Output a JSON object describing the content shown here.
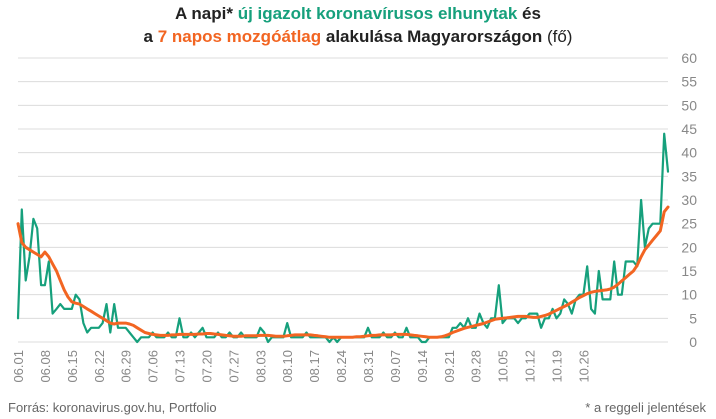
{
  "title": {
    "line1_prefix": "A napi* ",
    "line1_highlight": "új igazolt koronavírusos elhunytak",
    "line1_suffix": " és",
    "line2_prefix": "a ",
    "line2_highlight": "7 napos mozgóátlag",
    "line2_middle": " alakulása Magyarországon",
    "line2_unit": " (fő)"
  },
  "source": "Forrás: koronavirus.gov.hu, Portfolio",
  "footnote": "* a reggeli jelentések",
  "colors": {
    "daily": "#16a07c",
    "average": "#f26522",
    "grid": "#dcdcdc",
    "axis_text": "#888888"
  },
  "chart_data": {
    "type": "line",
    "ylim": [
      0,
      60
    ],
    "y_ticks": [
      "0",
      "5",
      "10",
      "15",
      "20",
      "25",
      "30",
      "35",
      "40",
      "45",
      "50",
      "55",
      "60"
    ],
    "x_tick_labels": [
      "06.01",
      "06.08",
      "06.15",
      "06.22",
      "06.29",
      "07.06",
      "07.13",
      "07.20",
      "07.27",
      "08.03",
      "08.10",
      "08.17",
      "08.24",
      "08.31",
      "09.07",
      "09.14",
      "09.21",
      "09.28",
      "10.05",
      "10.12",
      "10.19",
      "10.26"
    ],
    "grid": true,
    "series": [
      {
        "key": "daily",
        "values": [
          5,
          28,
          13,
          18,
          26,
          24,
          12,
          12,
          17,
          6,
          7,
          8,
          7,
          7,
          7,
          10,
          9,
          4,
          2,
          3,
          3,
          3,
          4,
          8,
          2,
          8,
          3,
          3,
          3,
          2,
          1,
          0,
          1,
          1,
          1,
          2,
          1,
          1,
          1,
          2,
          1,
          1,
          5,
          1,
          1,
          2,
          1,
          2,
          3,
          1,
          1,
          1,
          2,
          1,
          1,
          2,
          1,
          1,
          2,
          1,
          1,
          1,
          1,
          3,
          2,
          0,
          1,
          1,
          1,
          1,
          4,
          1,
          1,
          1,
          1,
          2,
          1,
          1,
          1,
          1,
          1,
          0,
          1,
          0,
          1,
          1,
          1,
          1,
          1,
          1,
          1,
          3,
          1,
          1,
          1,
          2,
          1,
          1,
          2,
          1,
          1,
          3,
          1,
          1,
          1,
          0,
          0,
          1,
          1,
          1,
          1,
          1,
          1,
          3,
          3,
          4,
          3,
          5,
          3,
          3,
          6,
          4,
          3,
          5,
          5,
          12,
          4,
          5,
          5,
          5,
          4,
          5,
          5,
          6,
          6,
          6,
          3,
          5,
          5,
          7,
          5,
          6,
          9,
          8,
          6,
          9,
          10,
          10,
          16,
          7,
          6,
          15,
          9,
          9,
          9,
          17,
          10,
          10,
          17,
          17,
          17,
          16,
          30,
          20,
          24,
          25,
          25,
          25,
          44,
          36
        ]
      },
      {
        "key": "average",
        "values": [
          25,
          21,
          20,
          19.5,
          19,
          18.5,
          18,
          19,
          18,
          16.5,
          15,
          13,
          11,
          9.5,
          8.5,
          8.2,
          8,
          7.5,
          7,
          6.5,
          6,
          5.5,
          5,
          4.5,
          4,
          3.8,
          4,
          4,
          4,
          3.8,
          3.5,
          3,
          2.5,
          2,
          1.8,
          1.6,
          1.5,
          1.4,
          1.4,
          1.4,
          1.5,
          1.5,
          1.6,
          1.6,
          1.6,
          1.6,
          1.6,
          1.7,
          1.7,
          1.8,
          1.8,
          1.7,
          1.6,
          1.5,
          1.4,
          1.3,
          1.2,
          1.2,
          1.2,
          1.3,
          1.3,
          1.3,
          1.3,
          1.4,
          1.4,
          1.4,
          1.3,
          1.2,
          1.2,
          1.2,
          1.3,
          1.4,
          1.5,
          1.5,
          1.5,
          1.5,
          1.5,
          1.4,
          1.3,
          1.2,
          1.1,
          1,
          1,
          1,
          1,
          1,
          1,
          1,
          1.1,
          1.1,
          1.2,
          1.3,
          1.4,
          1.4,
          1.5,
          1.5,
          1.5,
          1.5,
          1.6,
          1.6,
          1.6,
          1.6,
          1.5,
          1.4,
          1.3,
          1.2,
          1.1,
          1,
          1,
          1,
          1.1,
          1.3,
          1.6,
          2,
          2.3,
          2.6,
          2.9,
          3.1,
          3.3,
          3.5,
          3.7,
          3.9,
          4.2,
          4.5,
          4.8,
          4.9,
          5,
          5.1,
          5.2,
          5.3,
          5.4,
          5.4,
          5.4,
          5.3,
          5.2,
          5.2,
          5.4,
          5.6,
          5.9,
          6.3,
          6.7,
          7.1,
          7.5,
          7.9,
          8.4,
          8.9,
          9.4,
          9.8,
          10.2,
          10.5,
          10.7,
          10.8,
          10.9,
          11,
          11.2,
          11.6,
          12.2,
          12.9,
          13.6,
          14.3,
          15,
          16.2,
          18,
          19.5,
          20.5,
          21.5,
          22.5,
          23.5,
          27.5,
          28.5
        ]
      }
    ]
  }
}
